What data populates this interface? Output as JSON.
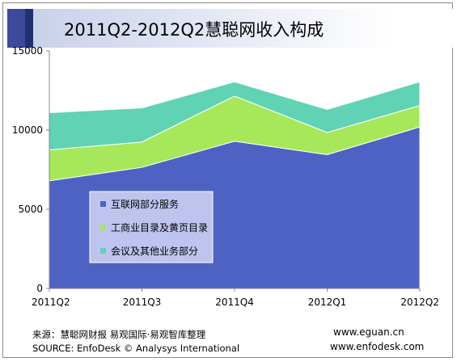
{
  "chart_data": {
    "type": "area",
    "stacked": true,
    "title": "2011Q2-2012Q2慧聪网收入构成",
    "categories": [
      "2011Q2",
      "2011Q3",
      "2011Q4",
      "2012Q1",
      "2012Q2"
    ],
    "series": [
      {
        "name": "互联网部分服务",
        "color": "#4e62c4",
        "values": [
          6800,
          7650,
          9300,
          8450,
          10200
        ]
      },
      {
        "name": "工商业目录及黄页目录",
        "color": "#a6e85a",
        "values": [
          1950,
          1600,
          2850,
          1400,
          1350
        ]
      },
      {
        "name": "会议及其他业务部分",
        "color": "#5fd3b4",
        "values": [
          2350,
          2150,
          900,
          1450,
          1500
        ]
      }
    ],
    "ylim": [
      0,
      15000
    ],
    "yticks": [
      "0",
      "5000",
      "10000",
      "15000"
    ],
    "grid": false,
    "legend_position": "center-left"
  },
  "footer": {
    "source_cn": "来源：慧聪网财报 易观国际·易观智库整理",
    "source_en": "SOURCE: EnfoDesk © Analysys International",
    "url_eguan": "www.eguan.cn",
    "url_enfodesk": "www.enfodesk.com"
  }
}
